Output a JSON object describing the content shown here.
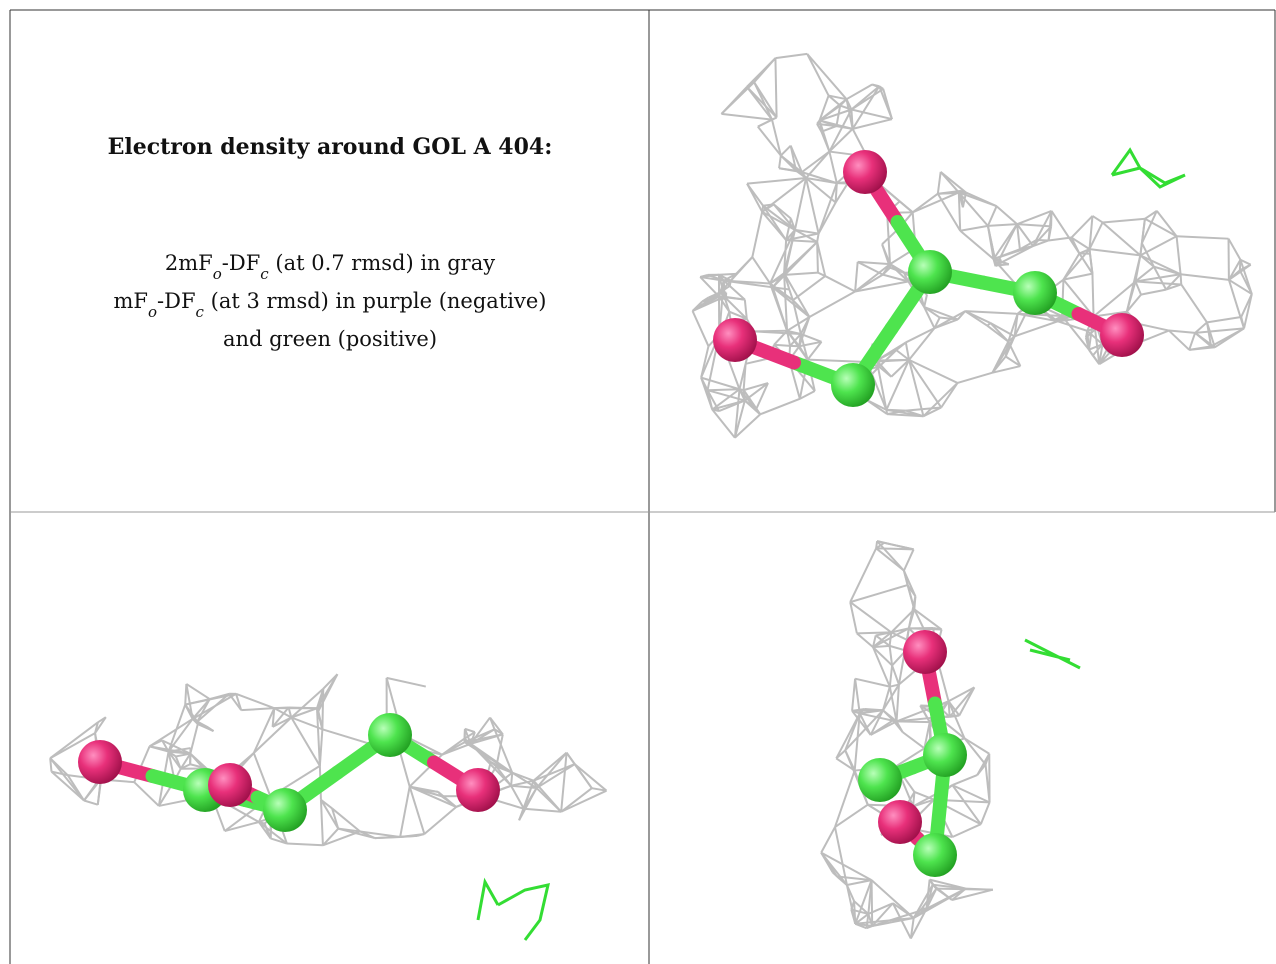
{
  "header": {
    "title": "Electron density around GOL A 404:"
  },
  "legend": {
    "lines": [
      [
        {
          "text": "2mF"
        },
        {
          "sub": "o"
        },
        {
          "text": "-DF"
        },
        {
          "sub": "c"
        },
        {
          "text": " (at 0.7 rmsd) in gray"
        }
      ],
      [
        {
          "text": "mF"
        },
        {
          "sub": "o"
        },
        {
          "text": "-DF"
        },
        {
          "sub": "c"
        },
        {
          "text": " (at 3 rmsd) in purple (negative)"
        }
      ],
      [
        {
          "text": "and green (positive)"
        }
      ]
    ]
  }
}
